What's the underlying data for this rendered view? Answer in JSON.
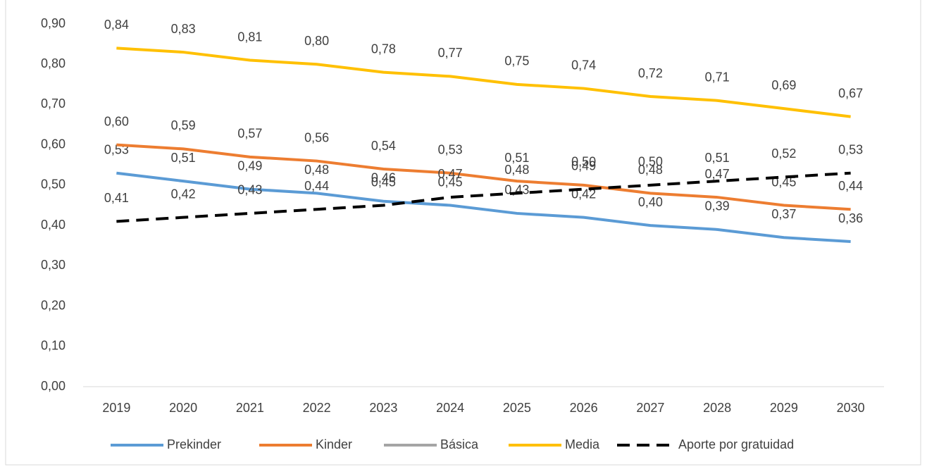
{
  "chart_data": {
    "type": "line",
    "categories": [
      "2019",
      "2020",
      "2021",
      "2022",
      "2023",
      "2024",
      "2025",
      "2026",
      "2027",
      "2028",
      "2029",
      "2030"
    ],
    "series": [
      {
        "name": "Prekinder",
        "color": "#5b9bd5",
        "values": [
          0.53,
          0.51,
          0.49,
          0.48,
          0.46,
          0.45,
          0.43,
          0.42,
          0.4,
          0.39,
          0.37,
          0.36
        ],
        "value_labels": [
          "0,53",
          "0,51",
          "0,49",
          "0,48",
          "0,46",
          "0,45",
          "0,43",
          "0,42",
          "0,40",
          "0,39",
          "0,37",
          "0,36"
        ]
      },
      {
        "name": "Kinder",
        "color": "#ed7d31",
        "values": [
          0.6,
          0.59,
          0.57,
          0.56,
          0.54,
          0.53,
          0.51,
          0.5,
          0.48,
          0.47,
          0.45,
          0.44
        ],
        "value_labels": [
          "0,60",
          "0,59",
          "0,57",
          "0,56",
          "0,54",
          "0,53",
          "0,51",
          "0,50",
          "0,48",
          "0,47",
          "0,45",
          "0,44"
        ]
      },
      {
        "name": "Básica",
        "color": "#a5a5a5",
        "values": [
          null,
          null,
          null,
          null,
          null,
          null,
          null,
          null,
          null,
          null,
          null,
          null
        ]
      },
      {
        "name": "Media",
        "color": "#ffc000",
        "values": [
          0.84,
          0.83,
          0.81,
          0.8,
          0.78,
          0.77,
          0.75,
          0.74,
          0.72,
          0.71,
          0.69,
          0.67
        ],
        "value_labels": [
          "0,84",
          "0,83",
          "0,81",
          "0,80",
          "0,78",
          "0,77",
          "0,75",
          "0,74",
          "0,72",
          "0,71",
          "0,69",
          "0,67"
        ]
      },
      {
        "name": "Aporte por gratuidad",
        "color": "#000000",
        "dashed": true,
        "values": [
          0.41,
          0.42,
          0.43,
          0.44,
          0.45,
          0.47,
          0.48,
          0.49,
          0.5,
          0.51,
          0.52,
          0.53
        ],
        "value_labels": [
          "0,41",
          "0,42",
          "0,43",
          "0,44",
          "0,45",
          "0,47",
          "0,48",
          "0,49",
          "0,50",
          "0,51",
          "0,52",
          "0,53"
        ]
      }
    ],
    "ylim": [
      0,
      0.9
    ],
    "yticks": [
      {
        "value": 0,
        "label": "0,00"
      },
      {
        "value": 0.1,
        "label": "0,10"
      },
      {
        "value": 0.2,
        "label": "0,20"
      },
      {
        "value": 0.3,
        "label": "0,30"
      },
      {
        "value": 0.4,
        "label": "0,40"
      },
      {
        "value": 0.5,
        "label": "0,50"
      },
      {
        "value": 0.6,
        "label": "0,60"
      },
      {
        "value": 0.7,
        "label": "0,70"
      },
      {
        "value": 0.8,
        "label": "0,80"
      },
      {
        "value": 0.9,
        "label": "0,90"
      }
    ],
    "legend": "bottom"
  }
}
